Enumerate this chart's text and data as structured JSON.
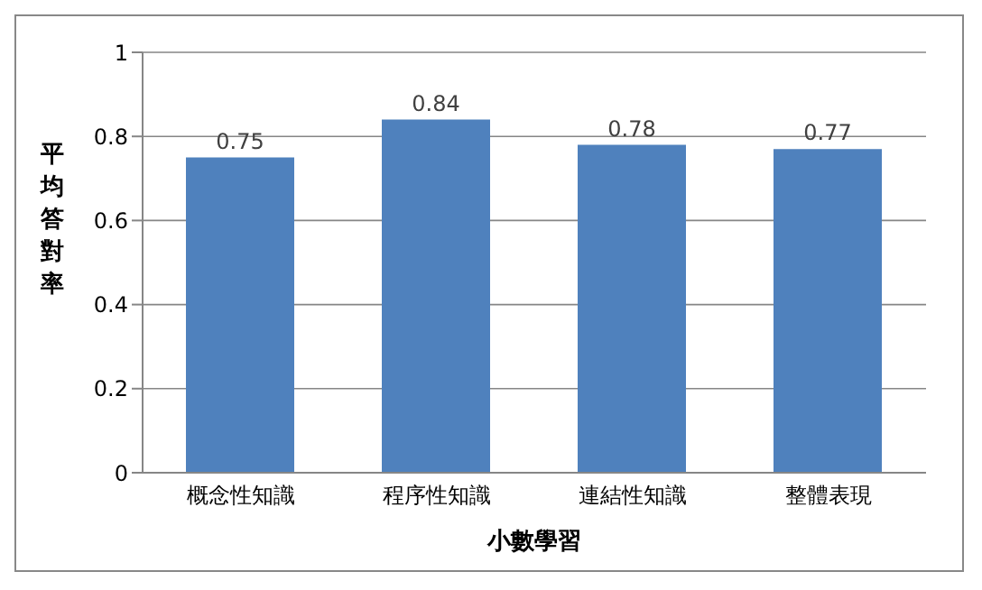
{
  "chart_data": {
    "type": "bar",
    "xlabel": "小數學習",
    "ylabel": "平均答對率",
    "categories": [
      "概念性知識",
      "程序性知識",
      "連結性知識",
      "整體表現"
    ],
    "values": [
      0.75,
      0.84,
      0.78,
      0.77
    ],
    "color": "#4f81bd",
    "ylim": [
      0,
      1
    ],
    "yticks": [
      0,
      0.2,
      0.4,
      0.6,
      0.8,
      1
    ],
    "grid": "y",
    "data_labels": true
  }
}
